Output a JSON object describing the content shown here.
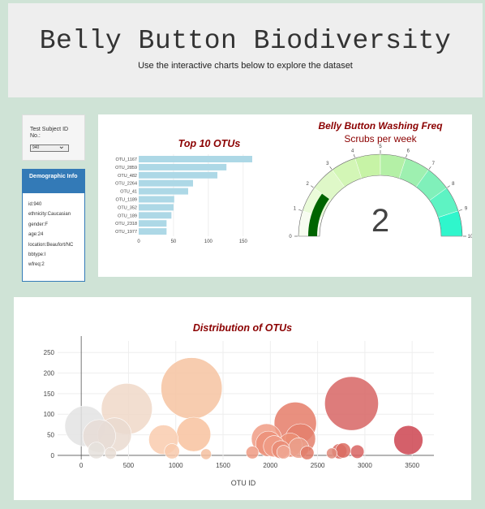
{
  "header": {
    "title": "Belly Button Biodiversity",
    "subtitle": "Use the interactive charts below to explore the dataset"
  },
  "selector": {
    "label": "Test Subject ID No.:",
    "value": "940"
  },
  "demographic": {
    "title": "Demographic Info",
    "rows": [
      "id:940",
      "ethnicity:Caucasian",
      "gender:F",
      "age:24",
      "location:Beaufort/NC",
      "bbtype:I",
      "wfreq:2"
    ]
  },
  "colors": {
    "bar": "#add8e6",
    "chart_title": "#8b0000",
    "gauge_needle": "#006400",
    "panel_head": "#337ab7"
  },
  "chart_data": [
    {
      "type": "bar",
      "orientation": "horizontal",
      "title": "Top 10 OTUs",
      "categories": [
        "OTU_1167",
        "OTU_2859",
        "OTU_482",
        "OTU_2264",
        "OTU_41",
        "OTU_1189",
        "OTU_352",
        "OTU_189",
        "OTU_2318",
        "OTU_1977"
      ],
      "values": [
        163,
        126,
        113,
        78,
        71,
        51,
        50,
        47,
        40,
        40
      ],
      "xticks": [
        "0",
        "50",
        "100",
        "150"
      ],
      "xlim": [
        0,
        170
      ]
    },
    {
      "type": "gauge",
      "title": "Belly Button Washing Freq",
      "subtitle": "Scrubs per week",
      "value": 2,
      "value_label": "2",
      "range": [
        0,
        10
      ],
      "ticks": [
        "0",
        "1",
        "2",
        "3",
        "4",
        "5",
        "6",
        "7",
        "8",
        "9",
        "10"
      ],
      "band_colors": [
        "#f7fcf0",
        "#eafbd9",
        "#dff8c8",
        "#d3f6b6",
        "#c7f3a6",
        "#b4f0a6",
        "#9ef0b0",
        "#80f0ba",
        "#5ef3c3",
        "#2ff6cc"
      ]
    },
    {
      "type": "scatter",
      "title": "Distribution of OTUs",
      "xlabel": "OTU ID",
      "xticks": [
        "0",
        "500",
        "1000",
        "1500",
        "2000",
        "2500",
        "3000",
        "3500"
      ],
      "yticks": [
        "0",
        "50",
        "100",
        "150",
        "200",
        "250"
      ],
      "xlim": [
        -250,
        3730
      ],
      "ylim": [
        -10,
        278
      ],
      "points": [
        {
          "x": 40,
          "y": 71,
          "size": 71,
          "color": "#e3e3e3"
        },
        {
          "x": 190,
          "y": 47,
          "size": 47,
          "color": "#e6dcd6"
        },
        {
          "x": 352,
          "y": 50,
          "size": 50,
          "color": "#eadad0"
        },
        {
          "x": 482,
          "y": 113,
          "size": 113,
          "color": "#f0d8c8"
        },
        {
          "x": 160,
          "y": 12,
          "size": 12,
          "color": "#e5e0dc"
        },
        {
          "x": 310,
          "y": 5,
          "size": 6,
          "color": "#e8ddd5"
        },
        {
          "x": 870,
          "y": 38,
          "size": 38,
          "color": "#f9cbae"
        },
        {
          "x": 960,
          "y": 10,
          "size": 10,
          "color": "#f8c9ab"
        },
        {
          "x": 1189,
          "y": 51,
          "size": 51,
          "color": "#f8c29f"
        },
        {
          "x": 1167,
          "y": 163,
          "size": 163,
          "color": "#f6c3a1"
        },
        {
          "x": 1320,
          "y": 3,
          "size": 5,
          "color": "#f4c0a0"
        },
        {
          "x": 1810,
          "y": 7,
          "size": 7,
          "color": "#ef9a82"
        },
        {
          "x": 1960,
          "y": 40,
          "size": 40,
          "color": "#f09c85"
        },
        {
          "x": 1980,
          "y": 28,
          "size": 28,
          "color": "#ec8f78"
        },
        {
          "x": 2040,
          "y": 22,
          "size": 20,
          "color": "#ee9c86"
        },
        {
          "x": 2110,
          "y": 14,
          "size": 14,
          "color": "#e98c75"
        },
        {
          "x": 2140,
          "y": 8,
          "size": 8,
          "color": "#f0a894"
        },
        {
          "x": 2210,
          "y": 25,
          "size": 25,
          "color": "#ec9077"
        },
        {
          "x": 2264,
          "y": 78,
          "size": 78,
          "color": "#e57d69"
        },
        {
          "x": 2318,
          "y": 40,
          "size": 40,
          "color": "#e4806c"
        },
        {
          "x": 2300,
          "y": 18,
          "size": 18,
          "color": "#eba08c"
        },
        {
          "x": 2390,
          "y": 6,
          "size": 8,
          "color": "#e07a67"
        },
        {
          "x": 2650,
          "y": 5,
          "size": 5,
          "color": "#e18a7a"
        },
        {
          "x": 2730,
          "y": 10,
          "size": 10,
          "color": "#d9675f"
        },
        {
          "x": 2770,
          "y": 12,
          "size": 10,
          "color": "#da6c62"
        },
        {
          "x": 2859,
          "y": 126,
          "size": 126,
          "color": "#d76564"
        },
        {
          "x": 2920,
          "y": 9,
          "size": 8,
          "color": "#d86361"
        },
        {
          "x": 3460,
          "y": 37,
          "size": 37,
          "color": "#cc4450"
        }
      ]
    }
  ]
}
